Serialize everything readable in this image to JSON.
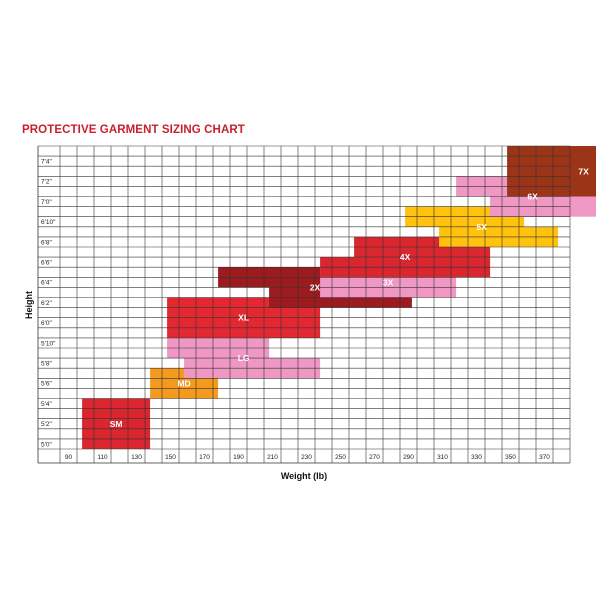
{
  "chart_data": {
    "type": "table",
    "title": "PROTECTIVE GARMENT SIZING CHART",
    "xlabel": "Weight (lb)",
    "ylabel": "Height",
    "x_ticks": [
      "90",
      "110",
      "130",
      "150",
      "170",
      "190",
      "210",
      "230",
      "250",
      "270",
      "290",
      "310",
      "330",
      "350",
      "370"
    ],
    "y_ticks": [
      "5'0\"",
      "5'2\"",
      "5'4\"",
      "5'6\"",
      "5'8\"",
      "5'10\"",
      "6'0\"",
      "6'2\"",
      "6'4\"",
      "6'6\"",
      "6'8\"",
      "6'10\"",
      "7'0\"",
      "7'2\"",
      "7'4\""
    ],
    "weight_range": [
      80,
      380
    ],
    "height_range_in": [
      59,
      89
    ],
    "grid": true,
    "sizes": [
      {
        "name": "SM",
        "color": "#d9262f",
        "segments": [
          {
            "weight": [
              93,
              133
            ],
            "height_in": [
              59,
              64
            ]
          }
        ]
      },
      {
        "name": "MD",
        "color": "#f39a1f",
        "segments": [
          {
            "weight": [
              133,
              173
            ],
            "height_in": [
              64,
              67
            ]
          }
        ]
      },
      {
        "name": "LG",
        "color": "#ef98c4",
        "segments": [
          {
            "weight": [
              153,
              233
            ],
            "height_in": [
              66,
              68
            ]
          },
          {
            "weight": [
              143,
              203
            ],
            "height_in": [
              68,
              70
            ]
          }
        ]
      },
      {
        "name": "XL",
        "color": "#e42832",
        "segments": [
          {
            "weight": [
              143,
              233
            ],
            "height_in": [
              70,
              74
            ]
          }
        ]
      },
      {
        "name": "2X",
        "color": "#9b1b1f",
        "segments": [
          {
            "weight": [
              203,
              287
            ],
            "height_in": [
              73,
              75
            ]
          },
          {
            "weight": [
              173,
              253
            ],
            "height_in": [
              75,
              77
            ]
          }
        ]
      },
      {
        "name": "3X",
        "color": "#ef98c4",
        "segments": [
          {
            "weight": [
              233,
              313
            ],
            "height_in": [
              74,
              77
            ]
          }
        ]
      },
      {
        "name": "4X",
        "color": "#d9262f",
        "segments": [
          {
            "weight": [
              233,
              333
            ],
            "height_in": [
              76,
              78
            ]
          },
          {
            "weight": [
              253,
              333
            ],
            "height_in": [
              78,
              80
            ]
          }
        ]
      },
      {
        "name": "5X",
        "color": "#ffc20e",
        "segments": [
          {
            "weight": [
              303,
              373
            ],
            "height_in": [
              79,
              81
            ]
          },
          {
            "weight": [
              283,
              353
            ],
            "height_in": [
              81,
              83
            ]
          }
        ]
      },
      {
        "name": "6X",
        "color": "#ef98c4",
        "segments": [
          {
            "weight": [
              333,
              403
            ],
            "height_in": [
              82,
              84
            ]
          },
          {
            "weight": [
              313,
              373
            ],
            "height_in": [
              84,
              86
            ]
          }
        ]
      },
      {
        "name": "7X",
        "color": "#9c3417",
        "segments": [
          {
            "weight": [
              343,
              433
            ],
            "height_in": [
              84,
              89
            ]
          }
        ]
      }
    ]
  }
}
